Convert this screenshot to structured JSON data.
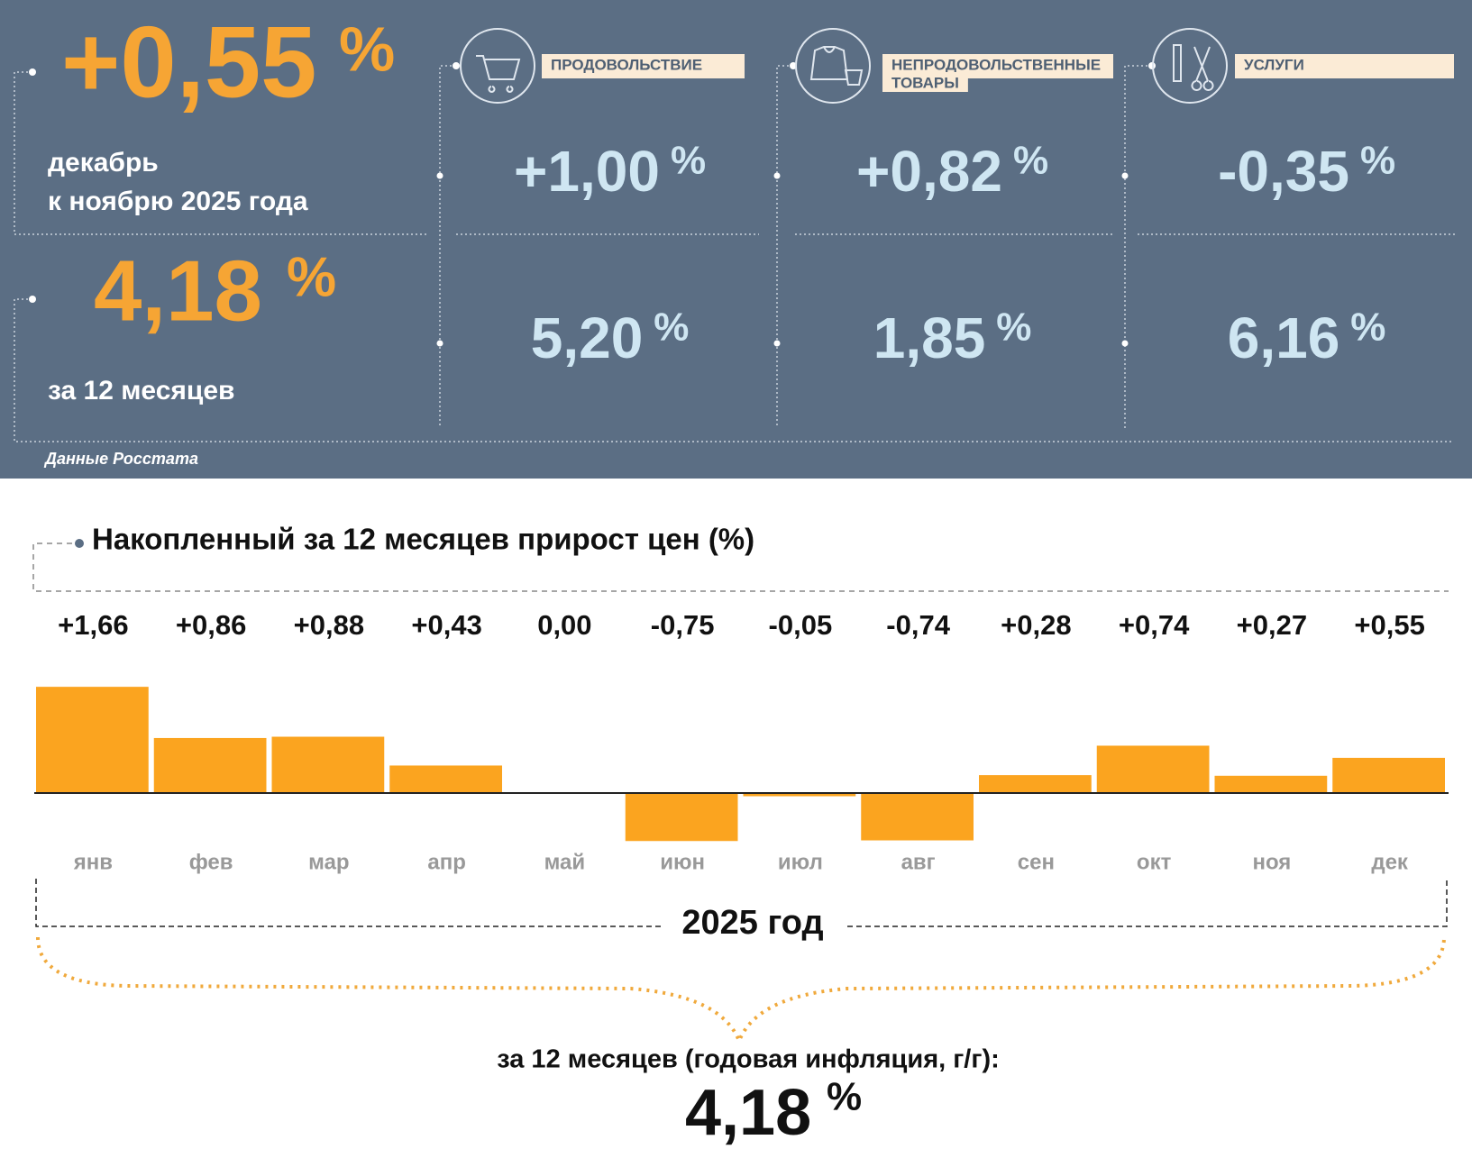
{
  "summary": {
    "monthly": {
      "value": "+0,55",
      "unit": "%",
      "caption": [
        "декабрь",
        "к ноябрю 2025 года"
      ]
    },
    "annual": {
      "value": "4,18",
      "unit": "%",
      "caption": "за 12 месяцев"
    },
    "groups": [
      {
        "name": [
          "ПРОДОВОЛЬСТВИЕ"
        ],
        "monthly": {
          "value": "+1,00",
          "unit": "%"
        },
        "annual": {
          "value": "5,20",
          "unit": "%"
        }
      },
      {
        "name": [
          "НЕПРОДОВОЛЬСТВЕННЫЕ",
          "ТОВАРЫ"
        ],
        "monthly": {
          "value": "+0,82",
          "unit": "%"
        },
        "annual": {
          "value": "1,85",
          "unit": "%"
        }
      },
      {
        "name": [
          "УСЛУГИ"
        ],
        "monthly": {
          "value": "-0,35",
          "unit": "%"
        },
        "annual": {
          "value": "6,16",
          "unit": "%"
        }
      }
    ],
    "source": "Данные Росстата"
  },
  "chart_data": {
    "type": "bar",
    "title": "Накопленный за 12 месяцев прирост цен (%)",
    "categories": [
      "янв",
      "фев",
      "мар",
      "апр",
      "май",
      "июн",
      "июл",
      "авг",
      "сен",
      "окт",
      "ноя",
      "дек"
    ],
    "values": [
      1.66,
      0.86,
      0.88,
      0.43,
      0,
      -0.75,
      -0.05,
      -0.74,
      0.28,
      0.74,
      0.27,
      0.55
    ],
    "value_labels": [
      "+1,66",
      "+0,86",
      "+0,88",
      "+0,43",
      "0,00",
      "-0,75",
      "-0,05",
      "-0,74",
      "+0,28",
      "+0,74",
      "+0,27",
      "+0,55"
    ],
    "color": "#fba41f",
    "x_label": "2025 год"
  },
  "result": {
    "caption": "за 12 месяцев (годовая инфляция, г/г):",
    "value": "4,18",
    "unit": "%"
  }
}
